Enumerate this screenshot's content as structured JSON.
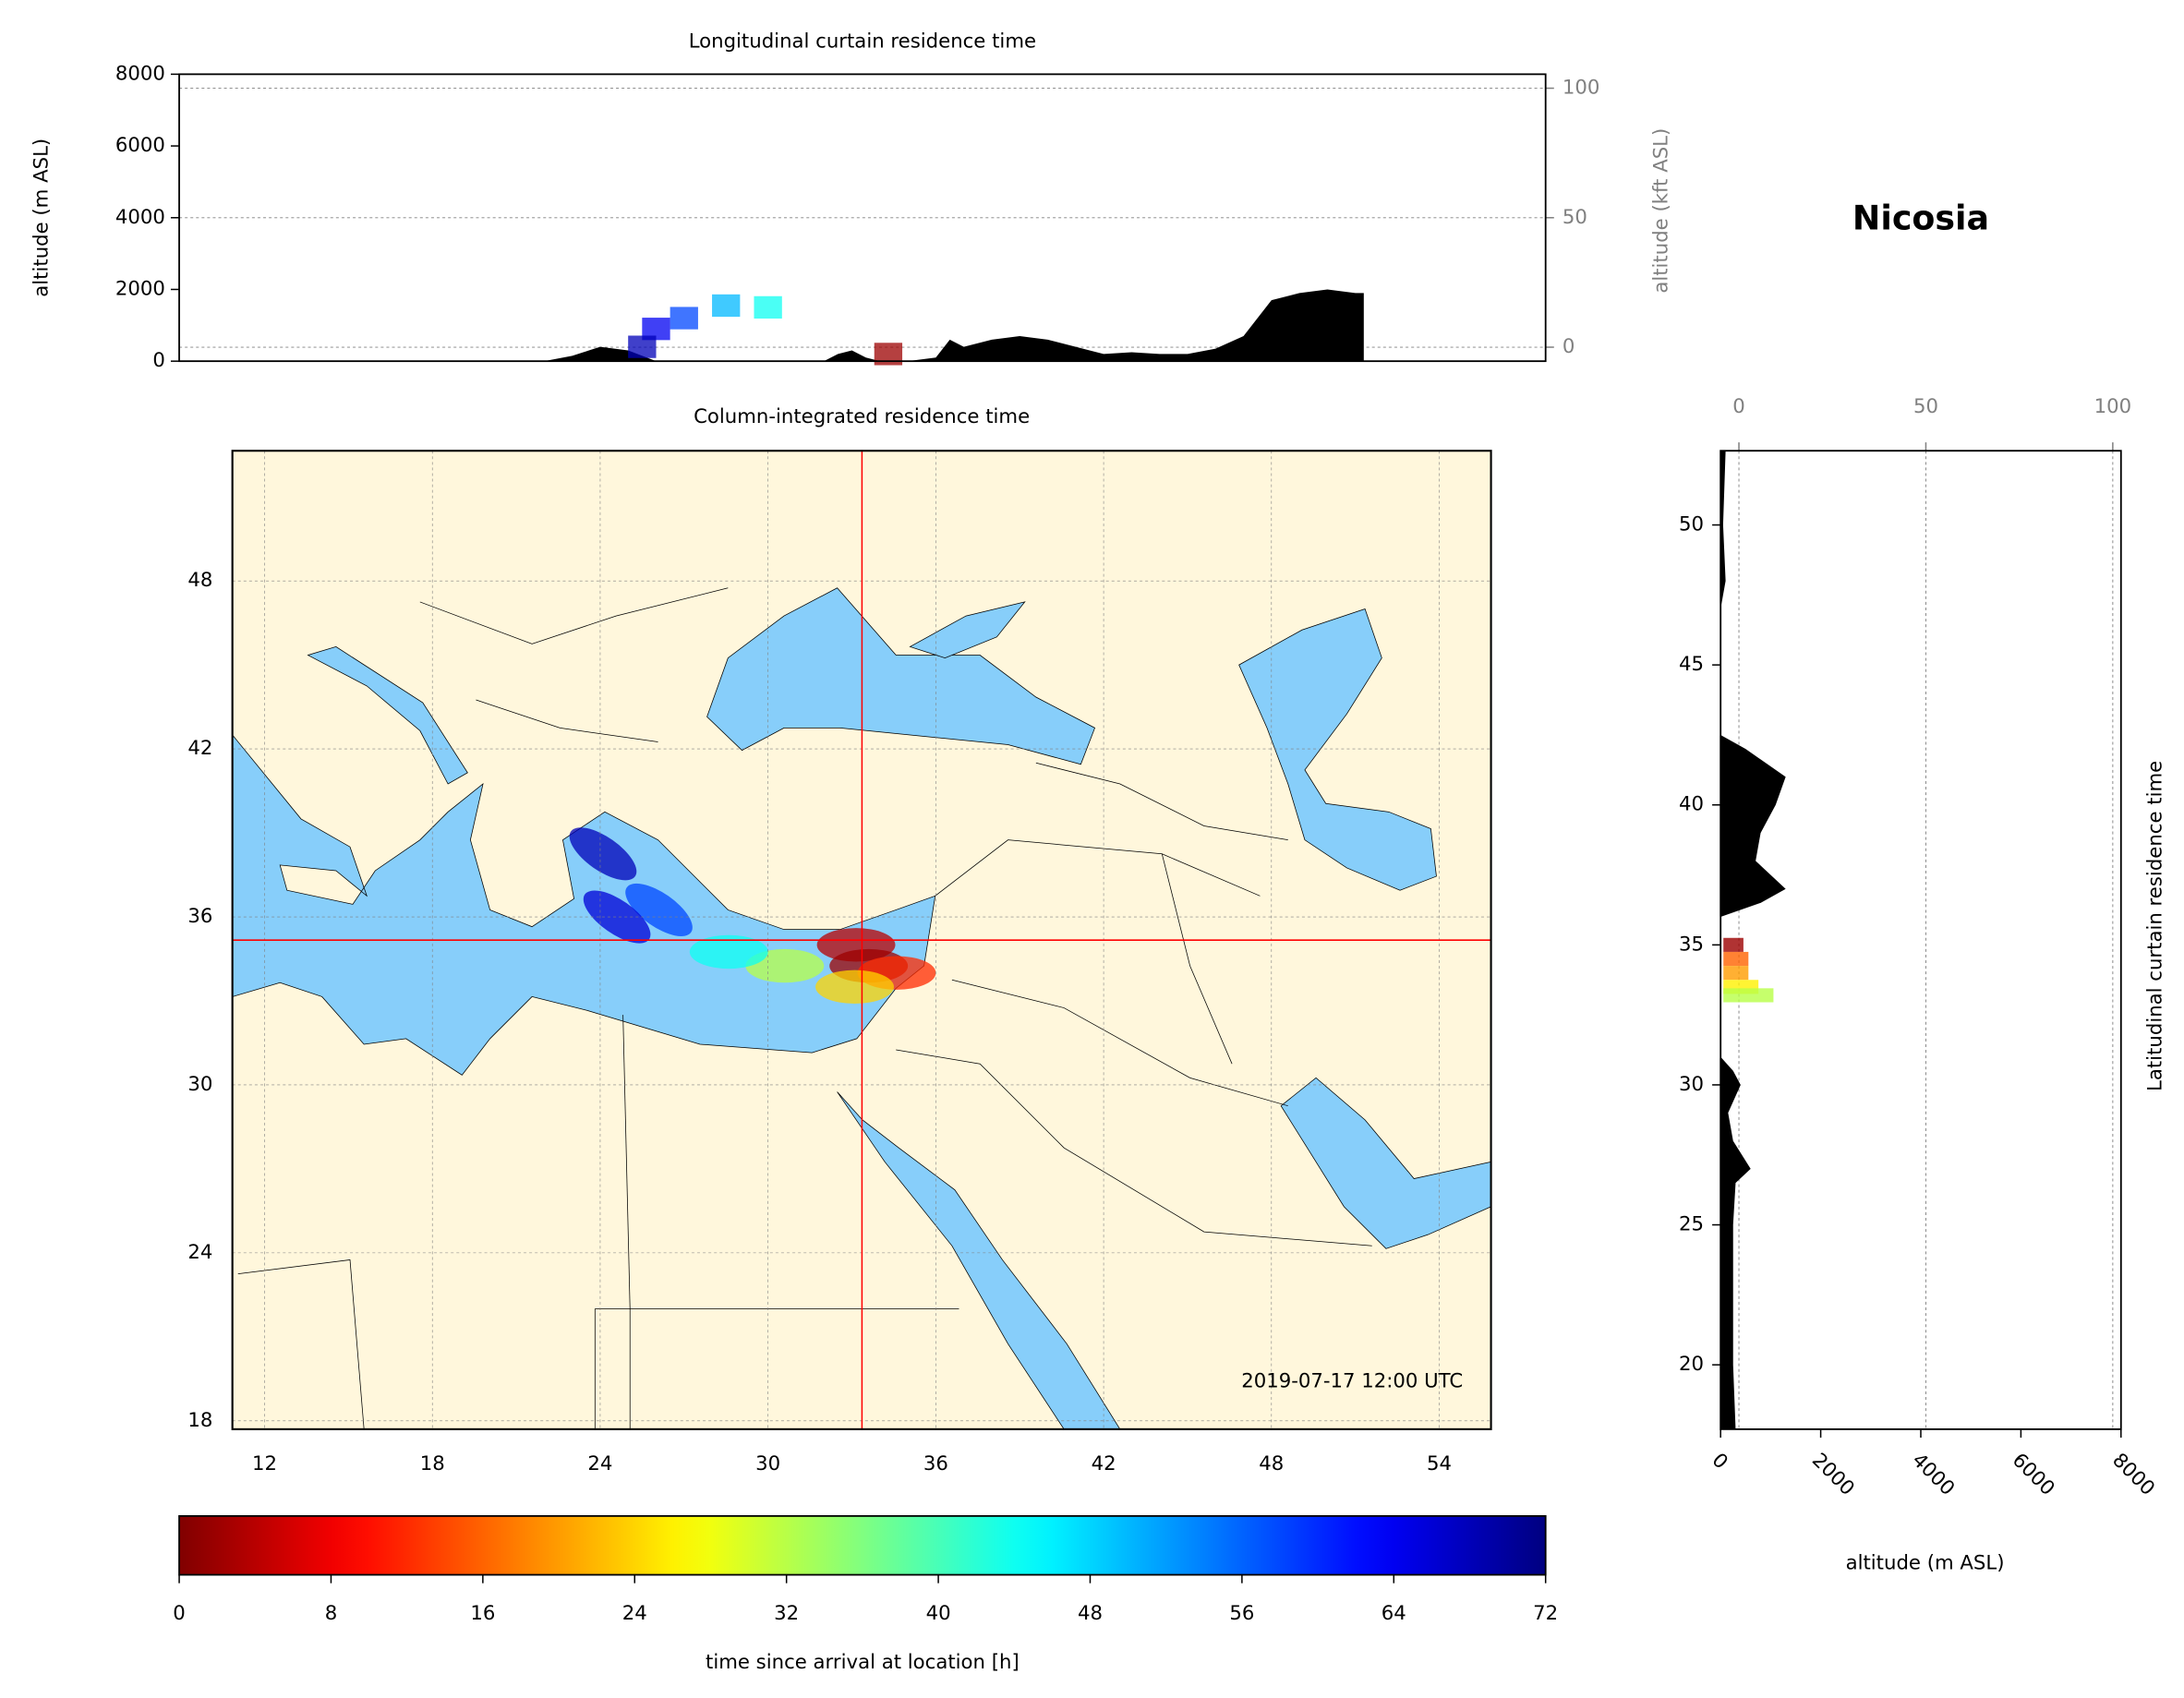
{
  "site_label": "Nicosia",
  "chart_data": [
    {
      "type": "area",
      "title": "Longitudinal curtain residence time",
      "y_label": "altitude (m ASL)",
      "y2_label": "altitude (kft ASL)",
      "xlim": [
        8.95,
        57.8
      ],
      "ylim": [
        0,
        8000
      ],
      "yticks": [
        0,
        2000,
        4000,
        6000,
        8000
      ],
      "y2lim": [
        -5.4,
        105.4
      ],
      "y2ticks": [
        0,
        50,
        100
      ],
      "grid": "y2",
      "color": "#000000",
      "x": [
        9,
        12,
        15,
        18,
        21,
        22,
        23,
        24,
        25,
        26,
        29,
        32,
        32.5,
        33,
        33.5,
        34,
        35,
        36,
        36.5,
        37,
        38,
        39,
        40,
        41,
        42,
        43,
        44,
        45,
        46,
        47,
        48,
        49,
        50,
        51,
        51.3
      ],
      "values": [
        0,
        0,
        0,
        0,
        0,
        0,
        150,
        400,
        300,
        0,
        0,
        0,
        200,
        300,
        100,
        0,
        0,
        100,
        600,
        400,
        600,
        700,
        600,
        400,
        200,
        250,
        200,
        200,
        350,
        700,
        1700,
        1900,
        2000,
        1900,
        1900
      ],
      "plume": {
        "x": [
          30,
          28.5,
          27,
          26,
          25.5,
          34.3
        ],
        "values": [
          1500,
          1550,
          1200,
          900,
          400,
          200
        ],
        "hours": [
          44,
          50,
          58,
          64,
          68,
          2
        ]
      }
    },
    {
      "type": "map",
      "title": "Column-integrated residence time",
      "xlim": [
        10.85,
        55.85
      ],
      "ylim": [
        17.7,
        52.65
      ],
      "xticks": [
        12,
        18,
        24,
        30,
        36,
        42,
        48,
        54
      ],
      "yticks": [
        18,
        24,
        30,
        36,
        42,
        48
      ],
      "grid": true,
      "annotation": "2019-07-17 12:00 UTC",
      "station": {
        "lon": 33.36,
        "lat": 35.17
      },
      "color": "#ff0000",
      "plume": {
        "lon": [
          33.15,
          33.6,
          34.6,
          33.1,
          30.6,
          28.6,
          26.1,
          24.6,
          24.1
        ],
        "lat": [
          35.0,
          34.25,
          34.0,
          33.5,
          34.25,
          34.75,
          36.25,
          36.0,
          38.25
        ],
        "hours": [
          4,
          2,
          12,
          24,
          32,
          44,
          58,
          66,
          68
        ]
      }
    },
    {
      "type": "area",
      "orientation": "horizontal",
      "title": "Latitudinal curtain residence time",
      "x_label": "altitude (m ASL)",
      "xlim": [
        0,
        8000
      ],
      "xticks": [
        0,
        2000,
        4000,
        6000,
        8000
      ],
      "x2lim": [
        -4.9,
        102.2
      ],
      "x2ticks": [
        0,
        50,
        100
      ],
      "ylim": [
        17.7,
        52.65
      ],
      "yticks": [
        20,
        25,
        30,
        35,
        40,
        45,
        50
      ],
      "grid": "x2",
      "color": "#000000",
      "y": [
        17.7,
        20,
        25,
        26.5,
        27,
        28,
        29,
        30,
        30.5,
        31,
        36,
        36.5,
        37,
        38,
        39,
        40,
        41,
        42,
        42.5,
        47,
        48,
        50,
        52.65
      ],
      "values": [
        300,
        250,
        250,
        300,
        600,
        250,
        150,
        400,
        250,
        0,
        0,
        800,
        1300,
        700,
        800,
        1100,
        1300,
        500,
        0,
        0,
        100,
        50,
        100
      ],
      "plume": {
        "y": [
          35.0,
          34.5,
          34.0,
          33.5,
          33.2
        ],
        "values": [
          400,
          500,
          500,
          700,
          1000
        ],
        "hours": [
          2,
          16,
          20,
          26,
          32
        ]
      }
    },
    {
      "type": "colorbar",
      "x_label": "time since arrival at location [h]",
      "xlim": [
        0,
        72
      ],
      "xticks": [
        0,
        8,
        16,
        24,
        32,
        40,
        48,
        56,
        64,
        72
      ]
    }
  ]
}
